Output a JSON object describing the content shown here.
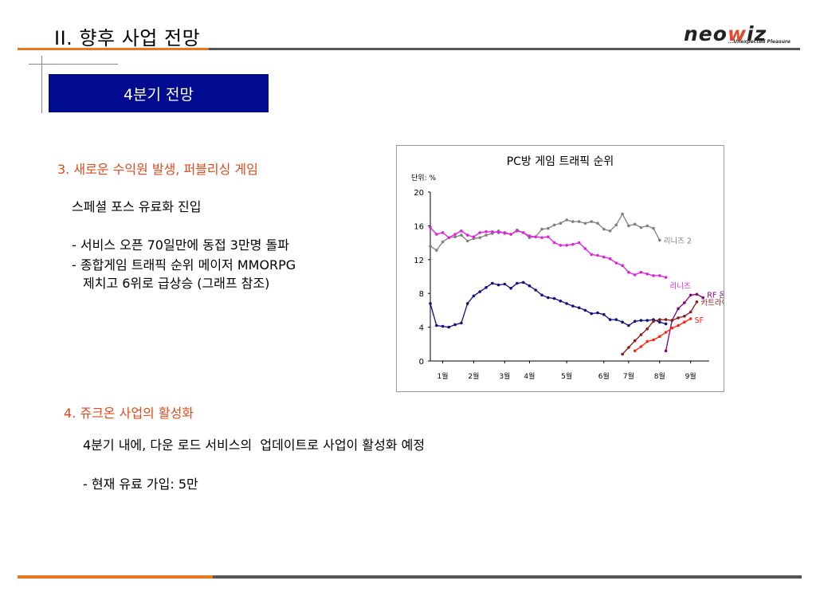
{
  "header": {
    "title": "II. 향후 사업 전망",
    "logo_text": "neowiz",
    "logo_tagline": "...Unexpected Pleasure"
  },
  "banner": {
    "label": "4분기 전망"
  },
  "section3": {
    "heading": "3. 새로운 수익원 발생, 퍼블리싱 게임",
    "subheading": "스페셜 포스 유료화 진입",
    "bullet1": "- 서비스 오픈 70일만에 동접 3만명 돌파",
    "bullet2": "- 종합게임 트래픽 순위 메이저 MMORPG",
    "bullet2_cont": "제치고 6위로 급상승 (그래프 참조)"
  },
  "section4": {
    "heading": "4. 쥬크온 사업의 활성화",
    "line1": "4분기 내에, 다운 로드 서비스의  업데이트로 사업이 활성화 예정",
    "line2": "- 현재 유료 가입: 5만"
  },
  "chart_data": {
    "type": "line",
    "title": "PC방 게임 트래픽 순위",
    "unit_label": "단위: %",
    "ylim": [
      0,
      20
    ],
    "yticks": [
      0,
      4,
      8,
      12,
      16,
      20
    ],
    "xlim": [
      0,
      45
    ],
    "x_ticks": [
      {
        "label": "1월",
        "x": 2
      },
      {
        "label": "2월",
        "x": 7
      },
      {
        "label": "3월",
        "x": 12
      },
      {
        "label": "4월",
        "x": 16
      },
      {
        "label": "5월",
        "x": 22
      },
      {
        "label": "6월",
        "x": 28
      },
      {
        "label": "7월",
        "x": 32
      },
      {
        "label": "8월",
        "x": 37
      },
      {
        "label": "9월",
        "x": 42
      }
    ],
    "series": [
      {
        "name": "리니즈 2",
        "color": "#808080",
        "start": 0,
        "values": [
          13.6,
          13.1,
          14.1,
          14.6,
          14.7,
          14.9,
          14.2,
          14.5,
          14.6,
          14.9,
          15.1,
          15.4,
          15.1,
          15.0,
          15.5,
          15.2,
          14.6,
          14.7,
          15.6,
          15.7,
          16.1,
          16.3,
          16.7,
          16.5,
          16.5,
          16.3,
          16.5,
          16.3,
          15.6,
          15.4,
          16.1,
          17.4,
          16.0,
          16.2,
          15.8,
          16.0,
          15.7,
          14.3
        ]
      },
      {
        "name": "리니즈",
        "color": "#e020e0",
        "start": 0,
        "values": [
          15.8,
          15.0,
          15.2,
          14.6,
          15.0,
          15.4,
          14.9,
          14.7,
          15.2,
          15.3,
          15.3,
          15.2,
          15.2,
          15.0,
          15.4,
          15.2,
          14.8,
          14.7,
          14.6,
          14.7,
          14.0,
          13.7,
          13.7,
          13.8,
          14.0,
          13.3,
          12.6,
          12.5,
          12.3,
          12.1,
          11.6,
          11.3,
          10.5,
          10.2,
          10.5,
          10.3,
          10.1,
          10.1,
          9.9
        ]
      },
      {
        "name": "",
        "color": "#101080",
        "start": 0,
        "values": [
          6.8,
          4.2,
          4.1,
          4.0,
          4.3,
          4.5,
          6.8,
          7.7,
          8.2,
          8.7,
          9.2,
          9.0,
          9.1,
          8.6,
          9.2,
          9.3,
          8.9,
          8.4,
          7.8,
          7.5,
          7.4,
          7.1,
          6.8,
          6.5,
          6.3,
          6.0,
          5.6,
          5.7,
          5.5,
          4.9,
          4.9,
          4.6,
          4.2,
          4.7,
          4.8,
          4.8,
          4.9,
          4.6,
          4.4
        ]
      },
      {
        "name": "RF 온라인",
        "color": "#800080",
        "start": 38,
        "values": [
          1.2,
          4.8,
          6.2,
          6.9,
          7.8,
          7.9,
          7.5
        ]
      },
      {
        "name": "카트라이더",
        "color": "#8b1a1a",
        "start": 31,
        "values": [
          0.8,
          1.6,
          2.4,
          3.1,
          3.8,
          4.7,
          4.9,
          4.9,
          4.8,
          5.1,
          5.3,
          5.8,
          7.0
        ]
      },
      {
        "name": "SF",
        "color": "#ff2010",
        "start": 33,
        "values": [
          1.2,
          1.7,
          2.3,
          2.5,
          2.9,
          3.4,
          3.9,
          4.2,
          4.6,
          5.0
        ]
      }
    ]
  }
}
